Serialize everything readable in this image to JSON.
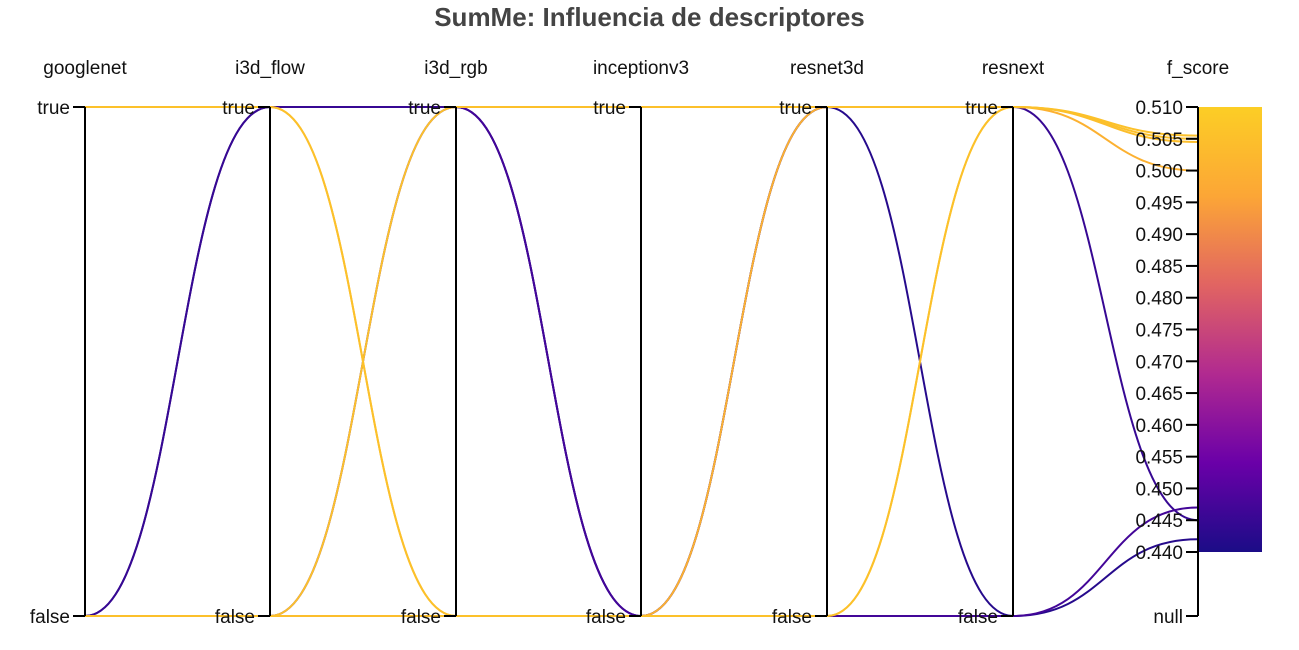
{
  "title": "SumMe: Influencia de descriptores",
  "chart_data": {
    "type": "parallel_coordinates",
    "title": "SumMe: Influencia de descriptores",
    "dimensions": [
      {
        "name": "googlenet",
        "ticks": [
          "true",
          "false"
        ]
      },
      {
        "name": "i3d_flow",
        "ticks": [
          "true",
          "false"
        ]
      },
      {
        "name": "i3d_rgb",
        "ticks": [
          "true",
          "false"
        ]
      },
      {
        "name": "inceptionv3",
        "ticks": [
          "true",
          "false"
        ]
      },
      {
        "name": "resnet3d",
        "ticks": [
          "true",
          "false"
        ]
      },
      {
        "name": "resnext",
        "ticks": [
          "true",
          "false"
        ]
      },
      {
        "name": "f_score",
        "range": [
          0.44,
          0.51
        ],
        "ticks": [
          "0.510",
          "0.505",
          "0.500",
          "0.495",
          "0.490",
          "0.485",
          "0.480",
          "0.475",
          "0.470",
          "0.465",
          "0.460",
          "0.455",
          "0.450",
          "0.445",
          "0.440",
          "null"
        ]
      }
    ],
    "colorscale": {
      "name": "plasma-like",
      "min": 0.44,
      "max": 0.51,
      "stops": [
        "#1b0c87",
        "#6a00a8",
        "#b12a90",
        "#e16462",
        "#fca636",
        "#fcce25"
      ]
    },
    "lines": [
      {
        "googlenet": "true",
        "i3d_flow": "true",
        "i3d_rgb": "false",
        "inceptionv3": "false",
        "resnet3d": "false",
        "resnext": "true",
        "f_score": 0.5055
      },
      {
        "googlenet": "true",
        "i3d_flow": "true",
        "i3d_rgb": "false",
        "inceptionv3": "false",
        "resnet3d": "true",
        "resnext": "true",
        "f_score": 0.5
      },
      {
        "googlenet": "false",
        "i3d_flow": "false",
        "i3d_rgb": "true",
        "inceptionv3": "true",
        "resnet3d": "true",
        "resnext": "true",
        "f_score": 0.505
      },
      {
        "googlenet": "false",
        "i3d_flow": "false",
        "i3d_rgb": "false",
        "inceptionv3": "false",
        "resnet3d": "false",
        "resnext": "true",
        "f_score": 0.5045
      },
      {
        "googlenet": "false",
        "i3d_flow": "true",
        "i3d_rgb": "true",
        "inceptionv3": "false",
        "resnet3d": "true",
        "resnext": "false",
        "f_score": 0.442
      },
      {
        "googlenet": "false",
        "i3d_flow": "false",
        "i3d_rgb": "true",
        "inceptionv3": "false",
        "resnet3d": "false",
        "resnext": "false",
        "f_score": 0.447
      },
      {
        "googlenet": "false",
        "i3d_flow": "true",
        "i3d_rgb": "true",
        "inceptionv3": "false",
        "resnet3d": "true",
        "resnext": "true",
        "f_score": 0.445
      }
    ]
  }
}
